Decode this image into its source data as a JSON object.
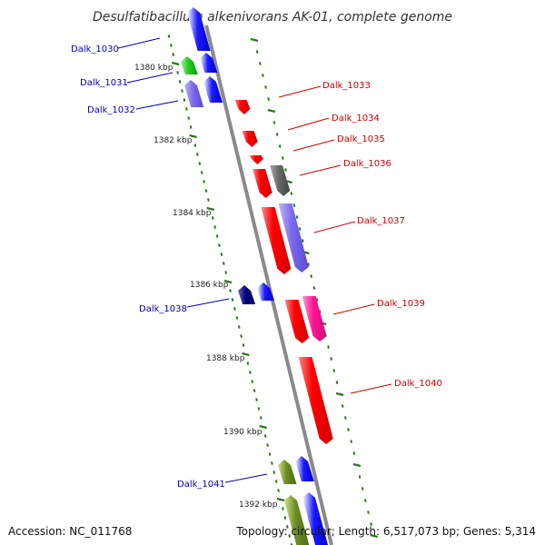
{
  "title": "Desulfatibacillum alkenivorans AK-01, complete genome",
  "accession": "Accession: NC_011768",
  "topology": "Topology: circular; Length: 6,517,073 bp; Genes: 5,314",
  "colors": {
    "backbone": "#8a8a8a",
    "tick": "#2a7a1a",
    "forward_label": "#cc0000",
    "reverse_label": "#0000bb"
  },
  "scale_labels": [
    "1380 kbp",
    "1382 kbp",
    "1384 kbp",
    "1386 kbp",
    "1388 kbp",
    "1390 kbp",
    "1392 kbp"
  ],
  "gene_labels": {
    "reverse": [
      "Dalk_1030",
      "Dalk_1031",
      "Dalk_1032",
      "Dalk_1038",
      "Dalk_1041"
    ],
    "forward": [
      "Dalk_1033",
      "Dalk_1034",
      "Dalk_1035",
      "Dalk_1036",
      "Dalk_1037",
      "Dalk_1039",
      "Dalk_1040"
    ]
  }
}
